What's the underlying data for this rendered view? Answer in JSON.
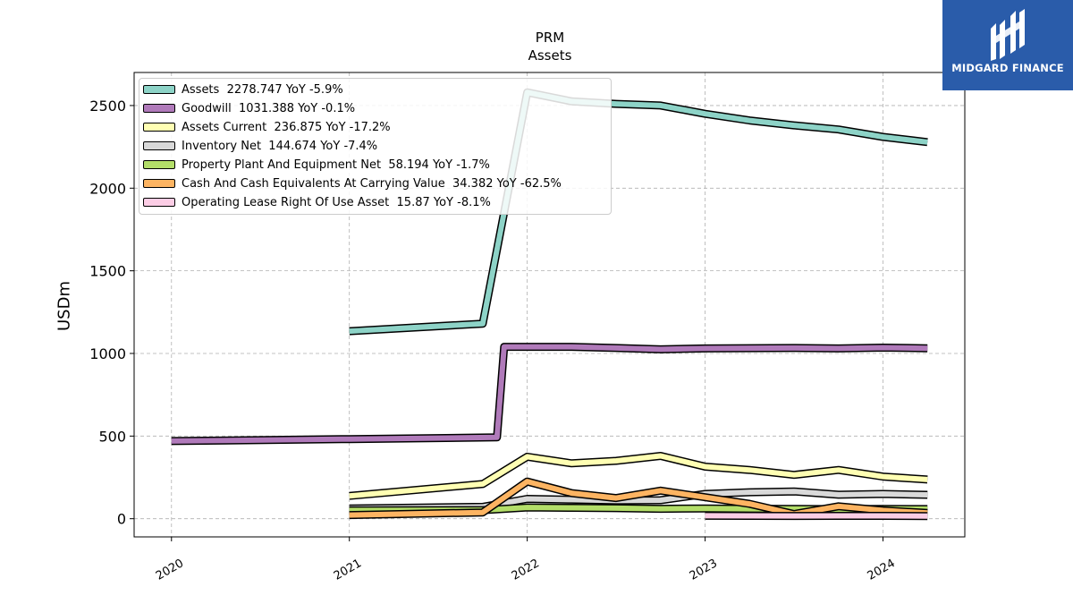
{
  "header": {
    "title_line1": "PRM",
    "title_line2": "Assets"
  },
  "brand": {
    "name": "MIDGARD FINANCE",
    "icon": "midgard-logo-icon",
    "color": "#2a5caa"
  },
  "chart_data": {
    "type": "line",
    "ylabel": "USDm",
    "ylim": [
      -110,
      2700
    ],
    "xlim": [
      2019.79,
      2024.46
    ],
    "y_ticks": [
      0,
      500,
      1000,
      1500,
      2000,
      2500
    ],
    "x_ticks": [
      2020,
      2021,
      2022,
      2023,
      2024
    ],
    "x_tick_labels": [
      "2020",
      "2021",
      "2022",
      "2023",
      "2024"
    ],
    "grid": true,
    "legend_position": "top-left",
    "series": [
      {
        "name": "Assets",
        "legend": "Assets  2278.747 YoY -5.9%",
        "color": "#8dd3c7",
        "points": [
          [
            2021.0,
            1135
          ],
          [
            2021.75,
            1180
          ],
          [
            2022.0,
            2580
          ],
          [
            2022.25,
            2525
          ],
          [
            2022.5,
            2510
          ],
          [
            2022.75,
            2500
          ],
          [
            2023.0,
            2450
          ],
          [
            2023.25,
            2410
          ],
          [
            2023.5,
            2380
          ],
          [
            2023.75,
            2355
          ],
          [
            2024.0,
            2310
          ],
          [
            2024.25,
            2278.747
          ]
        ]
      },
      {
        "name": "Goodwill",
        "legend": "Goodwill  1031.388 YoY -0.1%",
        "color": "#b07aba",
        "points": [
          [
            2020.0,
            470
          ],
          [
            2021.0,
            482
          ],
          [
            2021.83,
            492
          ],
          [
            2021.87,
            1040
          ],
          [
            2022.25,
            1040
          ],
          [
            2022.5,
            1033
          ],
          [
            2022.75,
            1025
          ],
          [
            2023.0,
            1030
          ],
          [
            2023.25,
            1032
          ],
          [
            2023.5,
            1033
          ],
          [
            2023.75,
            1030
          ],
          [
            2024.0,
            1035
          ],
          [
            2024.25,
            1031.388
          ]
        ]
      },
      {
        "name": "Assets Current",
        "legend": "Assets Current  236.875 YoY -17.2%",
        "color": "#ffffb3",
        "points": [
          [
            2021.0,
            138
          ],
          [
            2021.75,
            210
          ],
          [
            2022.0,
            375
          ],
          [
            2022.25,
            335
          ],
          [
            2022.5,
            350
          ],
          [
            2022.75,
            380
          ],
          [
            2023.0,
            315
          ],
          [
            2023.25,
            295
          ],
          [
            2023.5,
            265
          ],
          [
            2023.75,
            295
          ],
          [
            2024.0,
            255
          ],
          [
            2024.25,
            236.875
          ]
        ]
      },
      {
        "name": "Inventory Net",
        "legend": "Inventory Net  144.674 YoY -7.4%",
        "color": "#d9d9d9",
        "points": [
          [
            2021.0,
            62
          ],
          [
            2021.75,
            72
          ],
          [
            2022.0,
            120
          ],
          [
            2022.25,
            115
          ],
          [
            2022.5,
            110
          ],
          [
            2022.75,
            112
          ],
          [
            2023.0,
            150
          ],
          [
            2023.25,
            160
          ],
          [
            2023.5,
            165
          ],
          [
            2023.75,
            145
          ],
          [
            2024.0,
            150
          ],
          [
            2024.25,
            144.674
          ]
        ]
      },
      {
        "name": "Property Plant And Equipment Net",
        "legend": "Property Plant And Equipment Net  58.194 YoY -1.7%",
        "color": "#b3de69",
        "points": [
          [
            2021.0,
            50
          ],
          [
            2021.75,
            52
          ],
          [
            2022.0,
            68
          ],
          [
            2022.25,
            66
          ],
          [
            2022.5,
            64
          ],
          [
            2022.75,
            60
          ],
          [
            2023.0,
            62
          ],
          [
            2023.25,
            60
          ],
          [
            2023.5,
            59
          ],
          [
            2023.75,
            58
          ],
          [
            2024.0,
            59
          ],
          [
            2024.25,
            58.194
          ]
        ]
      },
      {
        "name": "Cash And Cash Equivalents At Carrying Value",
        "legend": "Cash And Cash Equivalents At Carrying Value  34.382 YoY -62.5%",
        "color": "#fdb462",
        "points": [
          [
            2021.0,
            22
          ],
          [
            2021.75,
            38
          ],
          [
            2022.0,
            225
          ],
          [
            2022.25,
            155
          ],
          [
            2022.5,
            125
          ],
          [
            2022.75,
            170
          ],
          [
            2023.0,
            130
          ],
          [
            2023.25,
            90
          ],
          [
            2023.5,
            28
          ],
          [
            2023.75,
            75
          ],
          [
            2024.0,
            50
          ],
          [
            2024.25,
            34.382
          ]
        ]
      },
      {
        "name": "Operating Lease Right Of Use Asset",
        "legend": "Operating Lease Right Of Use Asset  15.87 YoY -8.1%",
        "color": "#fccde5",
        "points": [
          [
            2023.0,
            18
          ],
          [
            2023.25,
            17
          ],
          [
            2023.5,
            16.5
          ],
          [
            2023.75,
            17
          ],
          [
            2024.0,
            17.3
          ],
          [
            2024.25,
            15.87
          ]
        ]
      }
    ]
  }
}
